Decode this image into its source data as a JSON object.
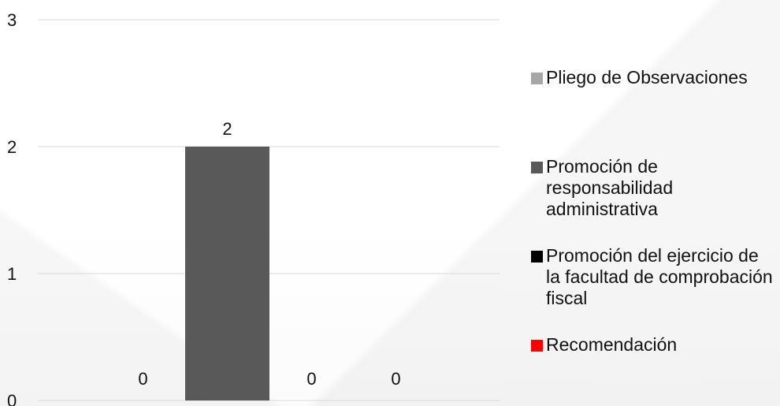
{
  "chart_data": {
    "type": "bar",
    "title": "",
    "xlabel": "",
    "ylabel": "",
    "ylim": [
      0,
      3
    ],
    "yticks": [
      0,
      1,
      2,
      3
    ],
    "grid": true,
    "legend_position": "right",
    "series": [
      {
        "name": "Pliego de Observaciones",
        "values": [
          0
        ],
        "color": "#a6a6a6"
      },
      {
        "name": "Promoción de responsabilidad administrativa",
        "values": [
          2
        ],
        "color": "#595959"
      },
      {
        "name": "Promoción del ejercicio de la facultad de comprobación fiscal",
        "values": [
          0
        ],
        "color": "#000000"
      },
      {
        "name": "Recomendación",
        "values": [
          0
        ],
        "color": "#ff0000"
      }
    ],
    "data_labels": [
      "0",
      "2",
      "0",
      "0"
    ]
  },
  "legend": {
    "items": [
      {
        "label": "Pliego de Observaciones",
        "color": "#a6a6a6"
      },
      {
        "label": "Promoción de responsabilidad administrativa",
        "color": "#595959"
      },
      {
        "label": "Promoción del ejercicio de la facultad de comprobación fiscal",
        "color": "#000000"
      },
      {
        "label": "Recomendación",
        "color": "#ff0000"
      }
    ]
  }
}
